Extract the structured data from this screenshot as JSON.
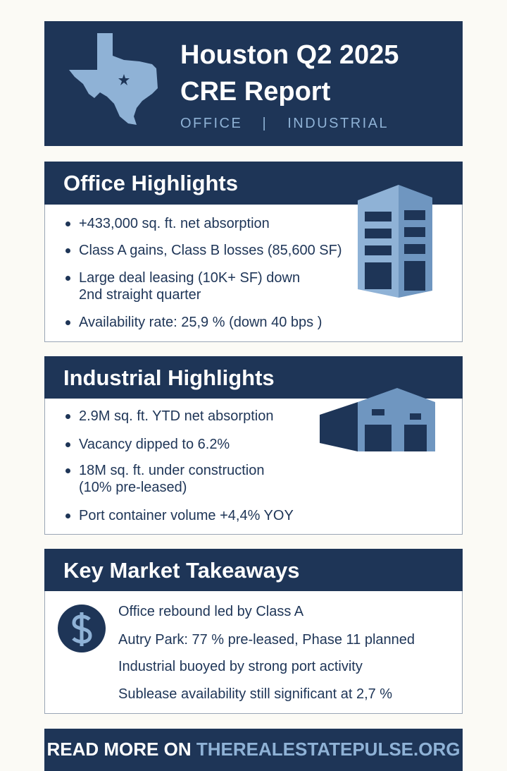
{
  "header": {
    "title_lines": [
      "Houston Q2 2025",
      "CRE Report"
    ],
    "subtitle": "OFFICE  |  INDUSTRIAL"
  },
  "office": {
    "heading": "Office Highlights",
    "bullets": [
      [
        "+433,000 sq. ft. net absorption"
      ],
      [
        "Class A gains, Class B losses (85,600 SF)"
      ],
      [
        "Large deal leasing (10K+ SF) down",
        "2nd straight quarter"
      ],
      [
        "Availability rate: 25,9 % (down 40 bps )"
      ]
    ]
  },
  "industrial": {
    "heading": "Industrial Highlights",
    "bullets": [
      [
        "2.9M sq. ft. YTD net absorption"
      ],
      [
        "Vacancy dipped to 6.2%"
      ],
      [
        "18M sq. ft. under construction",
        "(10% pre-leased)"
      ],
      [
        "Port container volume +4,4% YOY"
      ]
    ]
  },
  "takeaways": {
    "heading": "Key Market Takeaways",
    "items": [
      [
        "Office rebound led by Class A"
      ],
      [
        "Autry Park: 77 % pre-leased, Phase 11 planned"
      ],
      [
        "Industrial buoyed by strong port activity"
      ],
      [
        "Sublease availability still significant at  2,7 %"
      ]
    ]
  },
  "footer": {
    "lead": "READ MORE ON",
    "link": "THEREALESTATEPULSE.ORG"
  }
}
